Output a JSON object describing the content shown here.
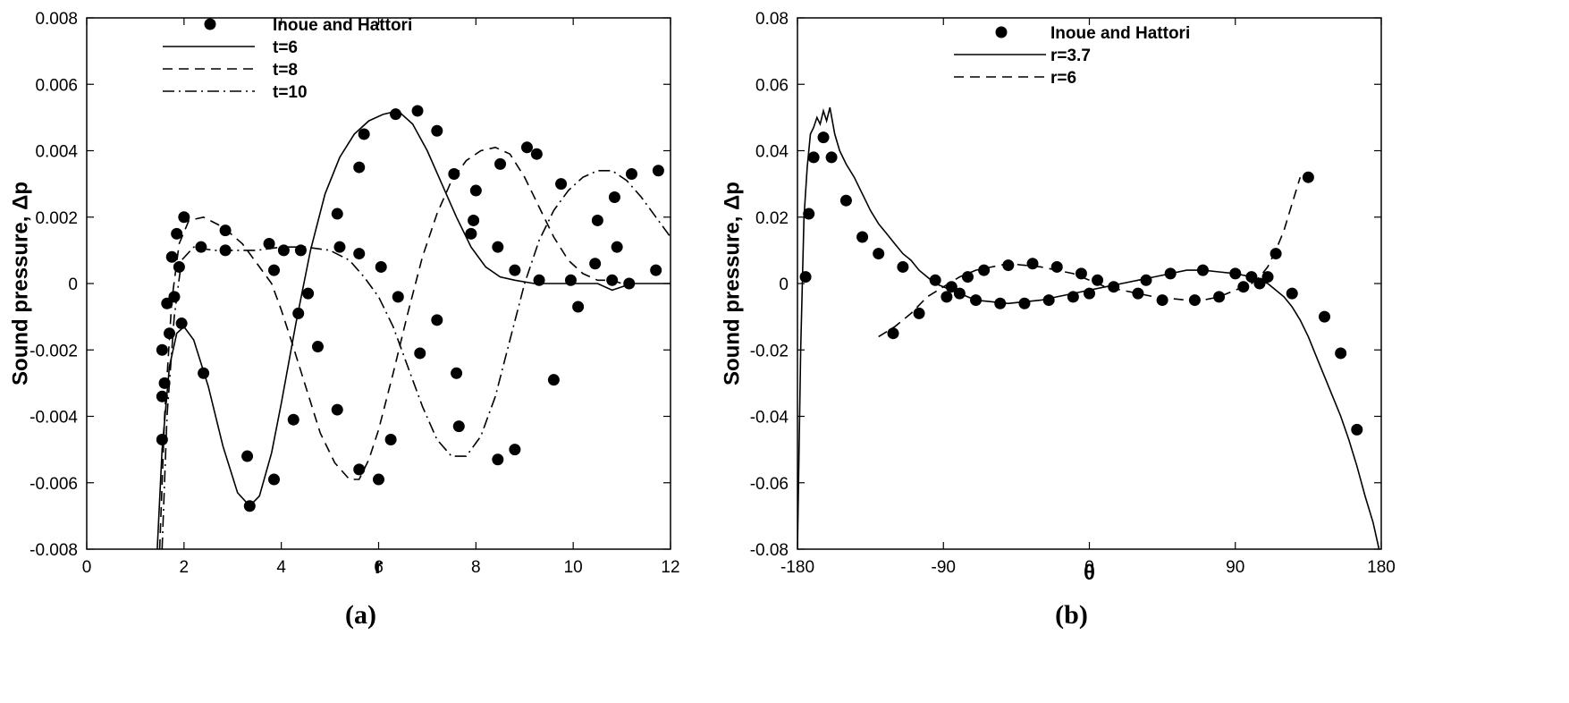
{
  "chart_data": [
    {
      "type": "line",
      "panel_label": "(a)",
      "xlabel": "r",
      "ylabel": "Sound pressure, Δp",
      "xlim": [
        0,
        12
      ],
      "ylim": [
        -0.008,
        0.008
      ],
      "x_ticks": [
        0,
        2,
        4,
        6,
        8,
        10,
        12
      ],
      "y_ticks": [
        -0.008,
        -0.006,
        -0.004,
        -0.002,
        0,
        0.002,
        0.004,
        0.006,
        0.008
      ],
      "x_tick_labels": [
        "0",
        "2",
        "4",
        "6",
        "8",
        "10",
        "12"
      ],
      "y_tick_labels": [
        "-0.008",
        "-0.006",
        "-0.004",
        "-0.002",
        "0",
        "0.002",
        "0.004",
        "0.006",
        "0.008"
      ],
      "legend": [
        {
          "label": "Inoue and Hattori",
          "style": "marker"
        },
        {
          "label": "t=6",
          "style": "solid"
        },
        {
          "label": "t=8",
          "style": "dashed"
        },
        {
          "label": "t=10",
          "style": "dashdot"
        }
      ],
      "series": [
        {
          "name": "t=6",
          "style": "solid",
          "x": [
            1.45,
            1.55,
            1.7,
            1.85,
            2.0,
            2.2,
            2.5,
            2.8,
            3.1,
            3.35,
            3.55,
            3.8,
            4.0,
            4.3,
            4.6,
            4.9,
            5.2,
            5.5,
            5.8,
            6.1,
            6.4,
            6.7,
            7.0,
            7.3,
            7.6,
            7.9,
            8.2,
            8.5,
            8.8,
            9.2,
            9.6,
            10.0,
            10.5,
            10.8,
            11.0,
            11.2,
            11.5,
            12.0
          ],
          "y": [
            -0.008,
            -0.005,
            -0.0025,
            -0.0015,
            -0.0013,
            -0.0017,
            -0.0031,
            -0.0049,
            -0.0063,
            -0.0067,
            -0.0064,
            -0.0051,
            -0.0036,
            -0.0012,
            0.001,
            0.0027,
            0.0038,
            0.0045,
            0.0049,
            0.0051,
            0.0052,
            0.0048,
            0.004,
            0.003,
            0.002,
            0.0011,
            0.0005,
            0.0002,
            0.0001,
            0.0,
            0.0,
            0.0,
            0.0,
            -0.0002,
            -0.0001,
            0.0,
            0.0,
            0.0
          ]
        },
        {
          "name": "t=8",
          "style": "dashed",
          "x": [
            1.5,
            1.6,
            1.75,
            1.9,
            2.1,
            2.4,
            2.8,
            3.2,
            3.5,
            3.8,
            4.0,
            4.2,
            4.5,
            4.8,
            5.1,
            5.4,
            5.6,
            5.8,
            6.0,
            6.3,
            6.6,
            6.9,
            7.2,
            7.5,
            7.8,
            8.1,
            8.4,
            8.7,
            9.0,
            9.3,
            9.6,
            9.9,
            10.2,
            10.5,
            10.8,
            11.0
          ],
          "y": [
            -0.008,
            -0.004,
            -0.0005,
            0.0012,
            0.0019,
            0.002,
            0.0017,
            0.0012,
            0.0006,
            0.0,
            -0.0008,
            -0.0017,
            -0.0031,
            -0.0045,
            -0.0054,
            -0.0059,
            -0.0059,
            -0.0053,
            -0.0044,
            -0.0027,
            -0.0009,
            0.0008,
            0.0021,
            0.0031,
            0.0037,
            0.004,
            0.0041,
            0.0039,
            0.0032,
            0.0023,
            0.0014,
            0.0007,
            0.0003,
            0.0001,
            0.0001,
            0.0
          ]
        },
        {
          "name": "t=10",
          "style": "dashdot",
          "x": [
            1.55,
            1.65,
            1.8,
            1.95,
            2.2,
            2.6,
            3.0,
            3.5,
            4.0,
            4.5,
            5.0,
            5.4,
            5.7,
            6.0,
            6.3,
            6.6,
            6.9,
            7.2,
            7.5,
            7.8,
            8.1,
            8.4,
            8.7,
            9.0,
            9.3,
            9.6,
            9.9,
            10.2,
            10.5,
            10.8,
            11.1,
            11.4,
            11.7,
            12.0
          ],
          "y": [
            -0.008,
            -0.004,
            -0.001,
            0.0007,
            0.0011,
            0.001,
            0.001,
            0.001,
            0.0011,
            0.0011,
            0.001,
            0.0007,
            0.0002,
            -0.0004,
            -0.0013,
            -0.0025,
            -0.0037,
            -0.0047,
            -0.0052,
            -0.0052,
            -0.0046,
            -0.0034,
            -0.0017,
            0.0,
            0.0013,
            0.0022,
            0.0028,
            0.0032,
            0.0034,
            0.0034,
            0.0031,
            0.0026,
            0.002,
            0.0014
          ]
        },
        {
          "name": "Inoue and Hattori",
          "style": "marker",
          "x": [
            1.55,
            1.55,
            1.55,
            1.6,
            1.65,
            1.7,
            1.75,
            1.8,
            1.85,
            1.9,
            1.95,
            2.0,
            2.35,
            2.4,
            2.85,
            2.85,
            3.3,
            3.35,
            3.75,
            3.85,
            3.85,
            4.05,
            4.25,
            4.35,
            4.4,
            4.55,
            4.75,
            5.15,
            5.15,
            5.2,
            5.6,
            5.6,
            5.6,
            5.7,
            6.0,
            6.05,
            6.25,
            6.35,
            6.4,
            6.8,
            6.85,
            7.2,
            7.2,
            7.55,
            7.6,
            7.65,
            7.9,
            7.95,
            8.0,
            8.45,
            8.45,
            8.5,
            8.8,
            8.8,
            9.05,
            9.25,
            9.3,
            9.6,
            9.75,
            9.95,
            10.1,
            10.45,
            10.5,
            10.8,
            10.85,
            10.9,
            11.15,
            11.2,
            11.7,
            11.75
          ],
          "y": [
            -0.0047,
            -0.0034,
            -0.002,
            -0.003,
            -0.0006,
            -0.0015,
            0.0008,
            -0.0004,
            0.0015,
            0.0005,
            -0.0012,
            0.002,
            0.0011,
            -0.0027,
            0.0016,
            0.001,
            -0.0052,
            -0.0067,
            0.0012,
            0.0004,
            -0.0059,
            0.001,
            -0.0041,
            -0.0009,
            0.001,
            -0.0003,
            -0.0019,
            0.0021,
            -0.0038,
            0.0011,
            0.0035,
            -0.0056,
            0.0009,
            0.0045,
            -0.0059,
            0.0005,
            -0.0047,
            0.0051,
            -0.0004,
            0.0052,
            -0.0021,
            0.0046,
            -0.0011,
            0.0033,
            -0.0027,
            -0.0043,
            0.0015,
            0.0019,
            0.0028,
            -0.0053,
            0.0011,
            0.0036,
            -0.005,
            0.0004,
            0.0041,
            0.0039,
            0.0001,
            -0.0029,
            0.003,
            0.0001,
            -0.0007,
            0.0006,
            0.0019,
            0.0001,
            0.0026,
            0.0011,
            0.0,
            0.0033,
            0.0004,
            0.0034
          ]
        }
      ]
    },
    {
      "type": "line",
      "panel_label": "(b)",
      "xlabel": "θ",
      "ylabel": "Sound pressure, Δp",
      "xlim": [
        -180,
        180
      ],
      "ylim": [
        -0.08,
        0.08
      ],
      "x_ticks": [
        -180,
        -90,
        0,
        90,
        180
      ],
      "y_ticks": [
        -0.08,
        -0.06,
        -0.04,
        -0.02,
        0,
        0.02,
        0.04,
        0.06,
        0.08
      ],
      "x_tick_labels": [
        "-180",
        "-90",
        "0",
        "90",
        "180"
      ],
      "y_tick_labels": [
        "-0.08",
        "-0.06",
        "-0.04",
        "-0.02",
        "0",
        "0.02",
        "0.04",
        "0.06",
        "0.08"
      ],
      "legend": [
        {
          "label": "Inoue and Hattori",
          "style": "marker"
        },
        {
          "label": "r=3.7",
          "style": "solid"
        },
        {
          "label": "r=6",
          "style": "dashed"
        }
      ],
      "series": [
        {
          "name": "r=3.7",
          "style": "solid",
          "x": [
            -180,
            -178,
            -176,
            -174,
            -172,
            -170,
            -168,
            -166,
            -164,
            -162,
            -160,
            -157,
            -154,
            -150,
            -145,
            -140,
            -135,
            -130,
            -125,
            -120,
            -115,
            -110,
            -105,
            -100,
            -95,
            -90,
            -80,
            -70,
            -60,
            -50,
            -40,
            -30,
            -20,
            -10,
            0,
            10,
            20,
            30,
            40,
            50,
            60,
            70,
            80,
            90,
            100,
            110,
            115,
            120,
            125,
            130,
            135,
            140,
            145,
            150,
            155,
            160,
            165,
            170,
            175,
            180
          ],
          "y": [
            -0.08,
            -0.02,
            0.02,
            0.035,
            0.045,
            0.047,
            0.05,
            0.048,
            0.052,
            0.049,
            0.053,
            0.045,
            0.04,
            0.036,
            0.032,
            0.027,
            0.022,
            0.018,
            0.015,
            0.012,
            0.009,
            0.007,
            0.004,
            0.002,
            0.0,
            -0.001,
            -0.003,
            -0.005,
            -0.0055,
            -0.006,
            -0.0055,
            -0.005,
            -0.004,
            -0.003,
            -0.002,
            -0.001,
            0.0,
            0.001,
            0.002,
            0.003,
            0.004,
            0.004,
            0.0035,
            0.003,
            0.002,
            0.0,
            -0.002,
            -0.004,
            -0.007,
            -0.011,
            -0.016,
            -0.022,
            -0.028,
            -0.034,
            -0.04,
            -0.047,
            -0.055,
            -0.064,
            -0.072,
            -0.083
          ]
        },
        {
          "name": "r=6",
          "style": "dashed",
          "x": [
            -130,
            -120,
            -110,
            -100,
            -90,
            -80,
            -70,
            -60,
            -50,
            -40,
            -30,
            -20,
            -10,
            0,
            10,
            20,
            30,
            40,
            50,
            60,
            70,
            80,
            90,
            100,
            105,
            110,
            115,
            120,
            125,
            130
          ],
          "y": [
            -0.016,
            -0.013,
            -0.009,
            -0.004,
            -0.001,
            0.002,
            0.004,
            0.005,
            0.006,
            0.0055,
            0.005,
            0.004,
            0.003,
            0.001,
            -0.001,
            -0.002,
            -0.003,
            -0.004,
            -0.0045,
            -0.005,
            -0.005,
            -0.004,
            -0.002,
            0.0,
            0.002,
            0.005,
            0.01,
            0.016,
            0.024,
            0.032
          ]
        },
        {
          "name": "Inoue and Hattori",
          "style": "marker",
          "x": [
            -175,
            -173,
            -170,
            -164,
            -159,
            -150,
            -140,
            -130,
            -121,
            -115,
            -105,
            -95,
            -88,
            -85,
            -80,
            -75,
            -70,
            -65,
            -55,
            -50,
            -40,
            -35,
            -25,
            -20,
            -10,
            -5,
            0,
            5,
            15,
            30,
            35,
            45,
            50,
            65,
            70,
            80,
            90,
            95,
            100,
            105,
            110,
            115,
            125,
            135,
            145,
            155,
            165
          ],
          "y": [
            0.002,
            0.021,
            0.038,
            0.044,
            0.038,
            0.025,
            0.014,
            0.009,
            -0.015,
            0.005,
            -0.009,
            0.001,
            -0.004,
            -0.001,
            -0.003,
            0.002,
            -0.005,
            0.004,
            -0.006,
            0.0055,
            -0.006,
            0.006,
            -0.005,
            0.005,
            -0.004,
            0.003,
            -0.003,
            0.001,
            -0.001,
            -0.003,
            0.001,
            -0.005,
            0.003,
            -0.005,
            0.004,
            -0.004,
            0.003,
            -0.001,
            0.002,
            0.0,
            0.002,
            0.009,
            -0.003,
            0.032,
            -0.01,
            -0.021,
            -0.044
          ]
        }
      ]
    }
  ]
}
